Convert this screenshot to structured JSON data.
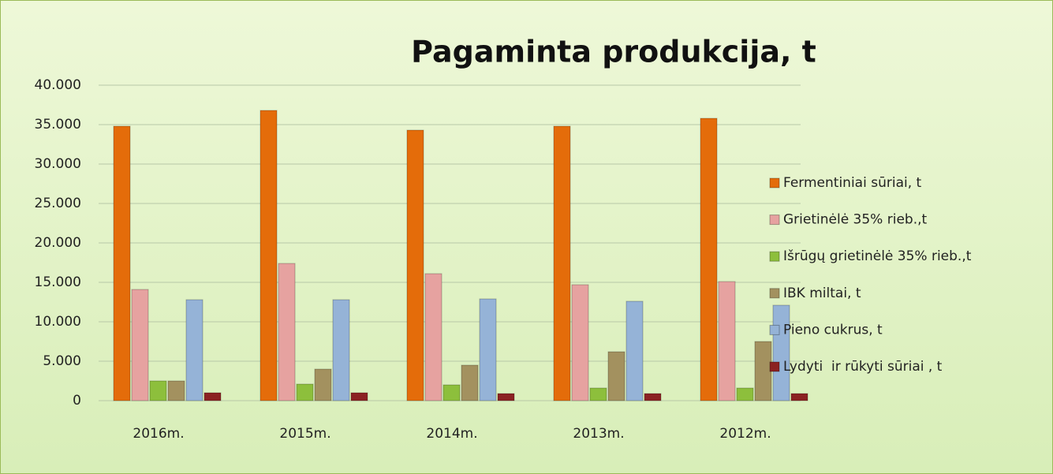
{
  "chart_data": {
    "type": "bar",
    "title": "Pagaminta produkcija, t",
    "categories": [
      "2016m.",
      "2015m.",
      "2014m.",
      "2013m.",
      "2012m."
    ],
    "series": [
      {
        "name": "Fermentiniai sūriai, t",
        "color": "#e46c0a",
        "values": [
          34800,
          36800,
          34300,
          34800,
          35800
        ]
      },
      {
        "name": "Grietinėlė 35% rieb.,t",
        "color": "#e6a2a0",
        "values": [
          14100,
          17400,
          16100,
          14700,
          15100
        ]
      },
      {
        "name": "Išrūgų grietinėlė 35% rieb.,t",
        "color": "#8dbf3c",
        "values": [
          2500,
          2100,
          2000,
          1600,
          1600
        ]
      },
      {
        "name": "IBK miltai, t",
        "color": "#a3915f",
        "values": [
          2500,
          4000,
          4500,
          6200,
          7500
        ]
      },
      {
        "name": "Pieno cukrus, t",
        "color": "#95b3d7",
        "values": [
          12800,
          12800,
          12900,
          12600,
          12100
        ]
      },
      {
        "name": "Lydyti  ir rūkyti sūriai , t",
        "color": "#8b2222",
        "values": [
          1000,
          1000,
          900,
          900,
          900
        ]
      }
    ],
    "ylim": [
      0,
      40000
    ],
    "yticks": [
      0,
      {
        "value": 5000,
        "label": "5.000"
      },
      {
        "value": 10000,
        "label": "10.000"
      },
      {
        "value": 15000,
        "label": "15.000"
      },
      {
        "value": 20000,
        "label": "20.000"
      },
      {
        "value": 25000,
        "label": "25.000"
      },
      {
        "value": 30000,
        "label": "30.000"
      },
      {
        "value": 35000,
        "label": "35.000"
      },
      {
        "value": 40000,
        "label": "40.000"
      }
    ],
    "grid": true,
    "legend": "right"
  }
}
